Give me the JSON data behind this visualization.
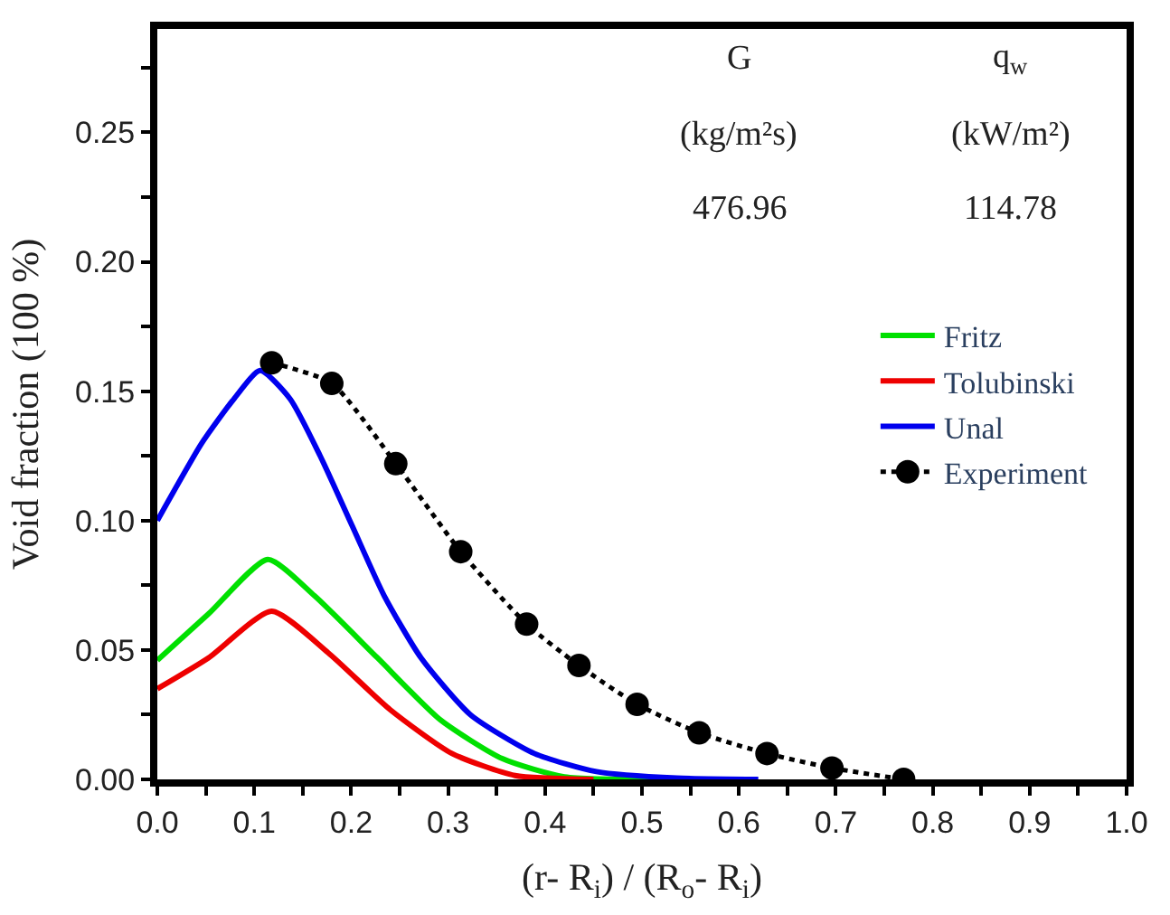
{
  "chart_data": {
    "type": "line",
    "xlabel": "(r- R$_{i}$) / (R$_{o}$- R$_{i}$)",
    "ylabel": "Void fraction (100 %)",
    "annotations": [
      "G",
      "q$_{w}$",
      "(kg/m²s)",
      "(kW/m²)",
      "476.96",
      "114.78"
    ],
    "xlim": [
      0,
      1.0
    ],
    "ylim": [
      0,
      0.29
    ],
    "xticks": [
      "0.0",
      0.1,
      0.2,
      0.3,
      0.4,
      0.5,
      0.6,
      0.7,
      0.8,
      0.9,
      "1.0",
      {
        "value": 0.05,
        "label": null
      },
      {
        "value": 0.15,
        "label": null
      },
      {
        "value": 0.25,
        "label": null
      },
      {
        "value": 0.35,
        "label": null
      },
      {
        "value": 0.45,
        "label": null
      },
      {
        "value": 0.55,
        "label": null
      },
      {
        "value": 0.65,
        "label": null
      },
      {
        "value": 0.75,
        "label": null
      },
      {
        "value": 0.85,
        "label": null
      },
      {
        "value": 0.95,
        "label": null
      }
    ],
    "yticks": [
      {
        "value": 0,
        "label": "0.00"
      },
      0.05,
      {
        "value": 0.1,
        "label": "0.10"
      },
      0.15,
      {
        "value": 0.2,
        "label": "0.20"
      },
      0.25,
      {
        "value": 0.025,
        "label": null
      },
      {
        "value": 0.075,
        "label": null
      },
      {
        "value": 0.125,
        "label": null
      },
      {
        "value": 0.175,
        "label": null
      },
      {
        "value": 0.225,
        "label": null
      },
      {
        "value": 0.275,
        "label": null
      }
    ],
    "legend": "right",
    "series": [
      {
        "name": "Fritz",
        "color": "#00e000",
        "x": [
          0,
          0.053,
          0.114,
          0.162,
          0.227,
          0.292,
          0.356,
          0.42,
          0.55
        ],
        "values": [
          0.046,
          0.064,
          0.085,
          0.071,
          0.047,
          0.023,
          0.008,
          0.001,
          0
        ]
      },
      {
        "name": "Tolubinski",
        "color": "#ee0000",
        "x": [
          0,
          0.053,
          0.118,
          0.176,
          0.24,
          0.304,
          0.369,
          0.45
        ],
        "values": [
          0.035,
          0.047,
          0.065,
          0.049,
          0.027,
          0.01,
          0.0015,
          0
        ]
      },
      {
        "name": "Unal",
        "color": "#0000ee",
        "x": [
          0,
          0.046,
          0.079,
          0.106,
          0.137,
          0.168,
          0.201,
          0.234,
          0.272,
          0.323,
          0.389,
          0.453,
          0.536,
          0.62
        ],
        "values": [
          0.1,
          0.13,
          0.147,
          0.158,
          0.147,
          0.125,
          0.098,
          0.071,
          0.047,
          0.025,
          0.01,
          0.003,
          0.0005,
          0
        ]
      },
      {
        "name": "Experiment",
        "color": "#000000",
        "marker": "circle",
        "line_style": "dotted",
        "x": [
          0.118,
          0.18,
          0.246,
          0.313,
          0.381,
          0.435,
          0.495,
          0.559,
          0.629,
          0.696,
          0.77
        ],
        "values": [
          0.161,
          0.153,
          0.122,
          0.088,
          0.06,
          0.044,
          0.029,
          0.018,
          0.01,
          0.0044,
          0.0
        ]
      }
    ]
  }
}
